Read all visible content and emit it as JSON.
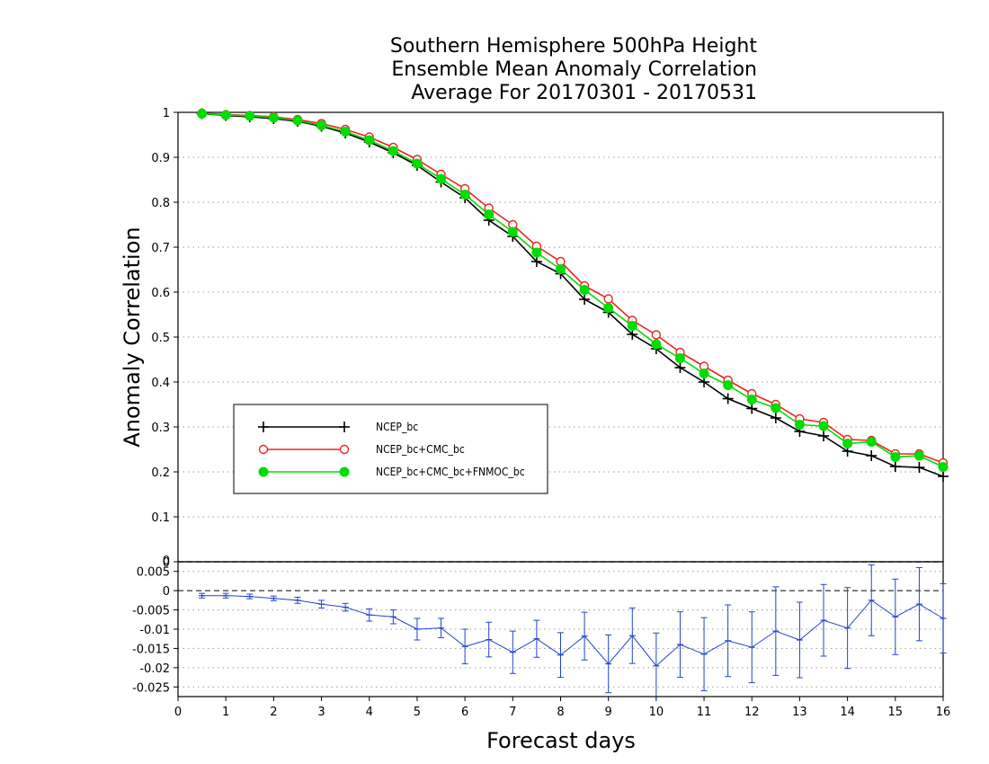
{
  "chart_data": [
    {
      "type": "line",
      "title": [
        "Southern Hemisphere 500hPa Height",
        "Ensemble Mean Anomaly Correlation",
        "Average For 20170301 - 20170531"
      ],
      "ylabel": "Anomaly Correlation",
      "xlim": [
        0,
        16
      ],
      "ylim": [
        0,
        1
      ],
      "yticks": [
        "0",
        "0.1",
        "0.2",
        "0.3",
        "0.4",
        "0.5",
        "0.6",
        "0.7",
        "0.8",
        "0.9",
        "1"
      ],
      "grid": true,
      "legend_position": "lower-left",
      "x": [
        0.5,
        1,
        1.5,
        2,
        2.5,
        3,
        3.5,
        4,
        4.5,
        5,
        5.5,
        6,
        6.5,
        7,
        7.5,
        8,
        8.5,
        9,
        9.5,
        10,
        10.5,
        11,
        11.5,
        12,
        12.5,
        13,
        13.5,
        14,
        14.5,
        15,
        15.5,
        16
      ],
      "series": [
        {
          "name": "NCEP_bc",
          "color": "#000000",
          "marker": "plus",
          "values": [
            0.997,
            0.993,
            0.99,
            0.986,
            0.98,
            0.969,
            0.954,
            0.934,
            0.91,
            0.882,
            0.845,
            0.81,
            0.76,
            0.724,
            0.668,
            0.641,
            0.584,
            0.555,
            0.506,
            0.474,
            0.432,
            0.4,
            0.363,
            0.341,
            0.32,
            0.29,
            0.28,
            0.246,
            0.236,
            0.212,
            0.21,
            0.19
          ]
        },
        {
          "name": "NCEP_bc+CMC_bc",
          "color": "#ee2222",
          "marker": "open-circle",
          "values": [
            0.998,
            0.995,
            0.993,
            0.99,
            0.984,
            0.975,
            0.962,
            0.945,
            0.922,
            0.895,
            0.862,
            0.83,
            0.787,
            0.75,
            0.702,
            0.668,
            0.614,
            0.585,
            0.537,
            0.505,
            0.466,
            0.435,
            0.404,
            0.374,
            0.35,
            0.318,
            0.31,
            0.272,
            0.27,
            0.24,
            0.24,
            0.22
          ]
        },
        {
          "name": "NCEP_bc+CMC_bc+FNMOC_bc",
          "color": "#00dd00",
          "marker": "filled-circle",
          "values": [
            0.997,
            0.994,
            0.992,
            0.988,
            0.982,
            0.971,
            0.957,
            0.938,
            0.914,
            0.886,
            0.852,
            0.817,
            0.773,
            0.734,
            0.688,
            0.651,
            0.605,
            0.565,
            0.525,
            0.484,
            0.453,
            0.419,
            0.393,
            0.361,
            0.342,
            0.305,
            0.302,
            0.263,
            0.267,
            0.233,
            0.236,
            0.211
          ]
        }
      ]
    },
    {
      "type": "line",
      "xlabel": "Forecast days",
      "xlim": [
        0,
        16
      ],
      "xticks": [
        "0",
        "1",
        "2",
        "3",
        "4",
        "5",
        "6",
        "7",
        "8",
        "9",
        "10",
        "11",
        "12",
        "13",
        "14",
        "15",
        "16"
      ],
      "ylim": [
        -0.0275,
        0.0075
      ],
      "yticks": [
        {
          "v": 0.005,
          "label": "0.005"
        },
        {
          "v": 0,
          "label": "0"
        },
        {
          "v": -0.005,
          "label": "-0.005"
        },
        {
          "v": -0.01,
          "label": "-0.01"
        },
        {
          "v": -0.015,
          "label": "-0.015"
        },
        {
          "v": -0.02,
          "label": "-0.02"
        },
        {
          "v": -0.025,
          "label": "-0.025"
        }
      ],
      "top_label": "0",
      "grid": true,
      "zero_line": true,
      "series": [
        {
          "color": "#2244cc",
          "marker": "error-bar",
          "x": [
            0.5,
            1,
            1.5,
            2,
            2.5,
            3,
            3.5,
            4,
            4.5,
            5,
            5.5,
            6,
            6.5,
            7,
            7.5,
            8,
            8.5,
            9,
            9.5,
            10,
            10.5,
            11,
            11.5,
            12,
            12.5,
            13,
            13.5,
            14,
            14.5,
            15,
            15.5,
            16
          ],
          "values": [
            -0.0013,
            -0.0013,
            -0.0015,
            -0.002,
            -0.0025,
            -0.0035,
            -0.0043,
            -0.0063,
            -0.0068,
            -0.01,
            -0.0097,
            -0.0145,
            -0.0127,
            -0.016,
            -0.0125,
            -0.0167,
            -0.0118,
            -0.019,
            -0.0117,
            -0.0195,
            -0.014,
            -0.0165,
            -0.013,
            -0.0147,
            -0.0105,
            -0.0128,
            -0.0077,
            -0.0097,
            -0.0025,
            -0.0068,
            -0.0035,
            -0.0072
          ],
          "errors": [
            0.0006,
            0.0006,
            0.0006,
            0.0006,
            0.0008,
            0.001,
            0.001,
            0.0016,
            0.0018,
            0.0028,
            0.0025,
            0.0045,
            0.0045,
            0.0055,
            0.0048,
            0.0058,
            0.0062,
            0.0075,
            0.0072,
            0.0085,
            0.0085,
            0.0095,
            0.0093,
            0.0092,
            0.0115,
            0.0098,
            0.0093,
            0.0105,
            0.0092,
            0.0098,
            0.0095,
            0.009
          ]
        }
      ]
    }
  ]
}
